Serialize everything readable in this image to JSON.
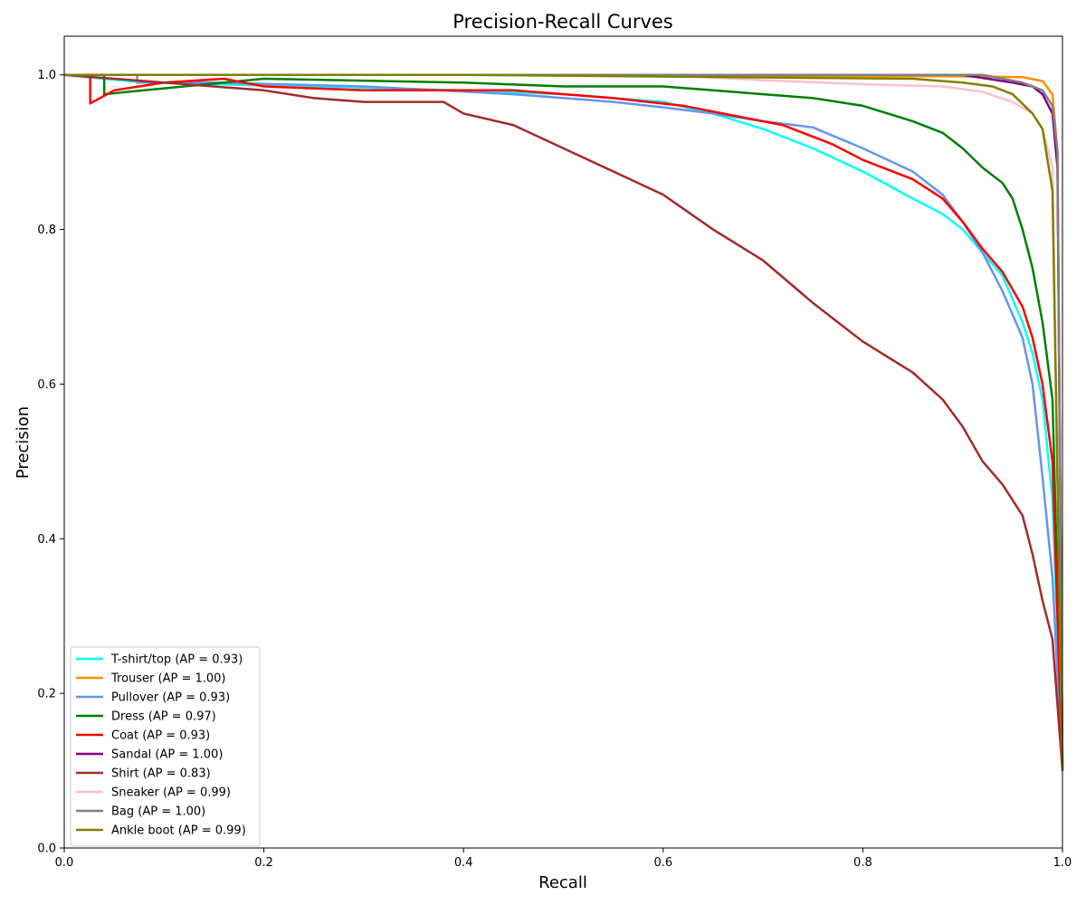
{
  "chart_data": {
    "type": "line",
    "title": "Precision-Recall Curves",
    "xlabel": "Recall",
    "ylabel": "Precision",
    "xlim": [
      0.0,
      1.0
    ],
    "ylim": [
      0.0,
      1.05
    ],
    "xticks": [
      "0.0",
      "0.2",
      "0.4",
      "0.6",
      "0.8",
      "1.0"
    ],
    "yticks": [
      "0.0",
      "0.2",
      "0.4",
      "0.6",
      "0.8",
      "1.0"
    ],
    "grid": false,
    "legend_position": "lower-left",
    "series": [
      {
        "name": "T-shirt/top (AP = 0.93)",
        "color": "#00ffff",
        "x": [
          0.0,
          0.08,
          0.25,
          0.4,
          0.5,
          0.6,
          0.65,
          0.7,
          0.75,
          0.8,
          0.85,
          0.88,
          0.9,
          0.92,
          0.94,
          0.96,
          0.97,
          0.98,
          0.99,
          1.0
        ],
        "y": [
          1.0,
          0.99,
          0.985,
          0.98,
          0.975,
          0.965,
          0.95,
          0.93,
          0.905,
          0.875,
          0.84,
          0.82,
          0.8,
          0.77,
          0.74,
          0.68,
          0.64,
          0.58,
          0.45,
          0.1
        ]
      },
      {
        "name": "Trouser (AP = 1.00)",
        "color": "#ff8c00",
        "x": [
          0.0,
          0.5,
          0.9,
          0.96,
          0.98,
          0.99,
          0.995,
          1.0
        ],
        "y": [
          1.0,
          1.0,
          0.998,
          0.997,
          0.992,
          0.975,
          0.9,
          0.1
        ]
      },
      {
        "name": "Pullover (AP = 0.93)",
        "color": "#6495ed",
        "x": [
          0.0,
          0.073,
          0.073,
          0.15,
          0.3,
          0.45,
          0.55,
          0.6,
          0.65,
          0.7,
          0.75,
          0.8,
          0.85,
          0.88,
          0.9,
          0.92,
          0.94,
          0.96,
          0.97,
          0.98,
          0.99,
          1.0
        ],
        "y": [
          1.0,
          1.0,
          0.99,
          0.99,
          0.985,
          0.975,
          0.965,
          0.958,
          0.95,
          0.94,
          0.932,
          0.905,
          0.875,
          0.845,
          0.81,
          0.77,
          0.72,
          0.66,
          0.6,
          0.48,
          0.35,
          0.1
        ]
      },
      {
        "name": "Dress (AP = 0.97)",
        "color": "#008000",
        "x": [
          0.0,
          0.04,
          0.04,
          0.2,
          0.4,
          0.5,
          0.6,
          0.65,
          0.7,
          0.75,
          0.8,
          0.85,
          0.88,
          0.9,
          0.92,
          0.94,
          0.95,
          0.96,
          0.97,
          0.98,
          0.99,
          1.0
        ],
        "y": [
          1.0,
          1.0,
          0.975,
          0.995,
          0.99,
          0.985,
          0.985,
          0.98,
          0.975,
          0.97,
          0.96,
          0.94,
          0.925,
          0.905,
          0.88,
          0.86,
          0.84,
          0.8,
          0.75,
          0.68,
          0.58,
          0.1
        ]
      },
      {
        "name": "Coat (AP = 0.93)",
        "color": "#ff0000",
        "x": [
          0.0,
          0.026,
          0.026,
          0.05,
          0.1,
          0.16,
          0.2,
          0.3,
          0.45,
          0.55,
          0.62,
          0.68,
          0.72,
          0.77,
          0.8,
          0.85,
          0.88,
          0.9,
          0.92,
          0.94,
          0.96,
          0.97,
          0.98,
          0.99,
          1.0
        ],
        "y": [
          1.0,
          1.0,
          0.963,
          0.98,
          0.99,
          0.995,
          0.985,
          0.98,
          0.98,
          0.97,
          0.96,
          0.945,
          0.935,
          0.91,
          0.89,
          0.865,
          0.84,
          0.81,
          0.775,
          0.745,
          0.7,
          0.66,
          0.6,
          0.5,
          0.1
        ]
      },
      {
        "name": "Sandal (AP = 1.00)",
        "color": "#800080",
        "x": [
          0.0,
          0.9,
          0.95,
          0.97,
          0.98,
          0.99,
          0.995,
          1.0
        ],
        "y": [
          1.0,
          1.0,
          0.99,
          0.985,
          0.975,
          0.95,
          0.88,
          0.1
        ]
      },
      {
        "name": "Shirt (AP = 0.83)",
        "color": "#a52a2a",
        "x": [
          0.0,
          0.2,
          0.25,
          0.3,
          0.38,
          0.4,
          0.45,
          0.5,
          0.55,
          0.6,
          0.65,
          0.7,
          0.75,
          0.8,
          0.85,
          0.88,
          0.9,
          0.92,
          0.94,
          0.96,
          0.97,
          0.98,
          0.99,
          1.0
        ],
        "y": [
          1.0,
          0.98,
          0.97,
          0.965,
          0.965,
          0.95,
          0.935,
          0.905,
          0.875,
          0.845,
          0.8,
          0.76,
          0.705,
          0.655,
          0.615,
          0.58,
          0.545,
          0.5,
          0.47,
          0.43,
          0.38,
          0.32,
          0.27,
          0.1
        ]
      },
      {
        "name": "Sneaker (AP = 0.99)",
        "color": "#ffc0cb",
        "x": [
          0.0,
          0.6,
          0.7,
          0.8,
          0.88,
          0.92,
          0.95,
          0.97,
          0.98,
          0.99,
          1.0
        ],
        "y": [
          1.0,
          1.0,
          0.993,
          0.988,
          0.985,
          0.978,
          0.965,
          0.95,
          0.93,
          0.88,
          0.1
        ]
      },
      {
        "name": "Bag (AP = 1.00)",
        "color": "#808080",
        "x": [
          0.0,
          0.92,
          0.96,
          0.98,
          0.99,
          0.995,
          1.0
        ],
        "y": [
          1.0,
          1.0,
          0.99,
          0.98,
          0.96,
          0.9,
          0.1
        ]
      },
      {
        "name": "Ankle boot (AP = 0.99)",
        "color": "#808000",
        "x": [
          0.0,
          0.4,
          0.85,
          0.9,
          0.93,
          0.95,
          0.97,
          0.98,
          0.99,
          1.0
        ],
        "y": [
          1.0,
          1.0,
          0.995,
          0.99,
          0.985,
          0.975,
          0.95,
          0.93,
          0.85,
          0.1
        ]
      }
    ]
  }
}
